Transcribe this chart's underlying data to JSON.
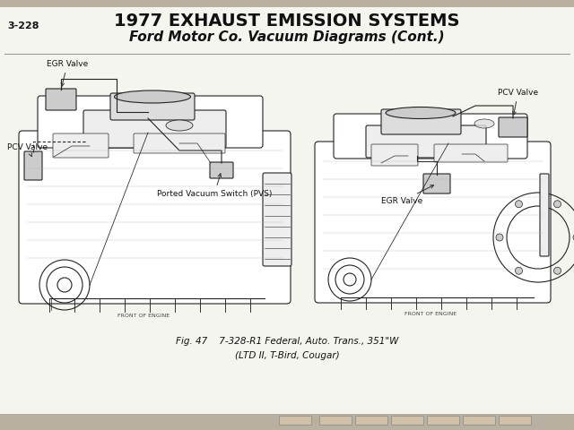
{
  "page_number": "3-228",
  "title_line1": "1977 EXHAUST EMISSION SYSTEMS",
  "title_line2": "Ford Motor Co. Vacuum Diagrams (Cont.)",
  "fig_caption_line1": "Fig. 47    7-328-R1 Federal, Auto. Trans., 351\"W",
  "fig_caption_line2": "(LTD II, T-Bird, Cougar)",
  "bg_color": "#f5f5f0",
  "top_bar_color": "#b8b0a0",
  "bottom_bar_color": "#b8b0a0",
  "text_color": "#111111",
  "outline_color": "#222222",
  "label_egr_left": "EGR Valve",
  "label_pcv_left": "PCV Valve",
  "label_pvs": "Ported Vacuum Switch (PVS)",
  "label_pcv_right": "PCV Valve",
  "label_egr_right": "EGR Valve",
  "front_of_engine": "FRONT OF ENGINE"
}
